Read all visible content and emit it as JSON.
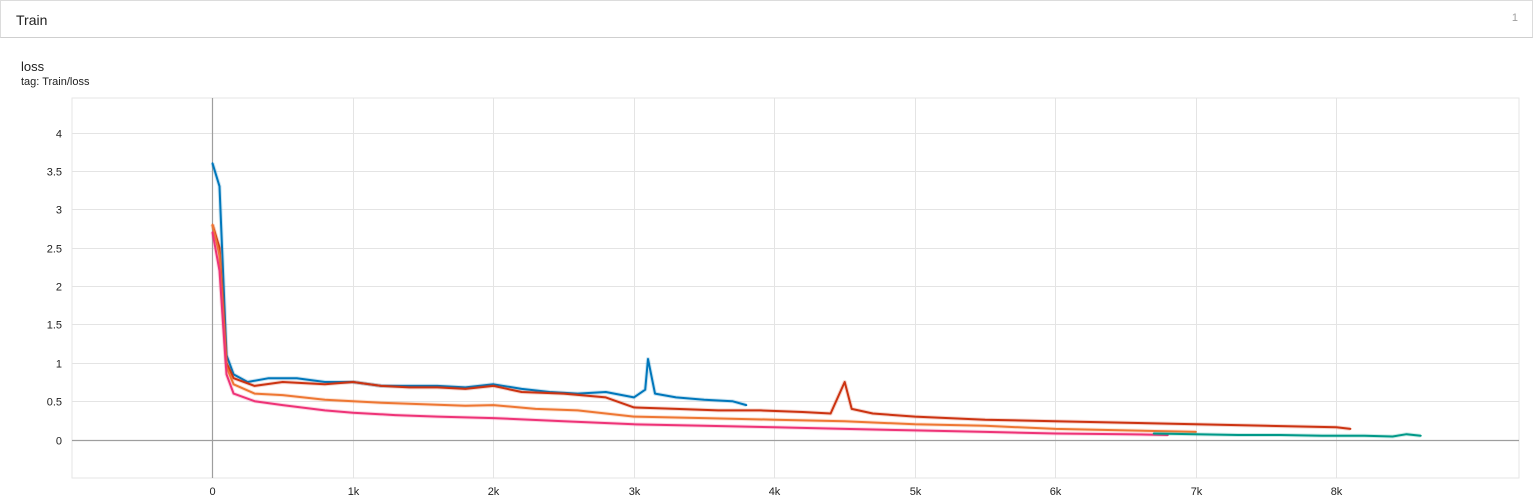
{
  "group": {
    "title": "Train",
    "count": "1"
  },
  "card": {
    "title": "loss",
    "subtitle": "tag: Train/loss"
  },
  "chart_data": {
    "type": "line",
    "xlabel": "",
    "ylabel": "",
    "xlim": [
      -1000,
      9300
    ],
    "ylim": [
      -0.5,
      4.45
    ],
    "grid": true,
    "x_ticks": [
      0,
      1000,
      2000,
      3000,
      4000,
      5000,
      6000,
      7000,
      8000
    ],
    "x_tick_labels": [
      "0",
      "1k",
      "2k",
      "3k",
      "4k",
      "5k",
      "6k",
      "7k",
      "8k"
    ],
    "y_ticks": [
      0,
      0.5,
      1,
      1.5,
      2,
      2.5,
      3,
      3.5,
      4
    ],
    "y_tick_labels": [
      "0",
      "0.5",
      "1",
      "1.5",
      "2",
      "2.5",
      "3",
      "3.5",
      "4"
    ],
    "series": [
      {
        "color": "#0077bb",
        "x": [
          0,
          50,
          100,
          150,
          250,
          400,
          600,
          800,
          1000,
          1200,
          1400,
          1600,
          1800,
          2000,
          2200,
          2400,
          2600,
          2800,
          3000,
          3080,
          3100,
          3150,
          3300,
          3500,
          3700,
          3800
        ],
        "y": [
          3.6,
          3.3,
          1.1,
          0.85,
          0.75,
          0.8,
          0.8,
          0.75,
          0.75,
          0.7,
          0.7,
          0.7,
          0.68,
          0.72,
          0.66,
          0.62,
          0.6,
          0.62,
          0.55,
          0.65,
          1.05,
          0.6,
          0.55,
          0.52,
          0.5,
          0.45
        ]
      },
      {
        "color": "#cc3311",
        "x": [
          0,
          50,
          100,
          150,
          300,
          500,
          800,
          1000,
          1200,
          1400,
          1600,
          1800,
          2000,
          2200,
          2500,
          2800,
          3000,
          3300,
          3600,
          3900,
          4200,
          4400,
          4500,
          4550,
          4700,
          5000,
          5500,
          6000,
          6500,
          7000,
          7500,
          8000,
          8100
        ],
        "y": [
          2.8,
          2.5,
          1.0,
          0.8,
          0.7,
          0.75,
          0.72,
          0.75,
          0.7,
          0.68,
          0.68,
          0.66,
          0.7,
          0.62,
          0.6,
          0.55,
          0.42,
          0.4,
          0.38,
          0.38,
          0.36,
          0.34,
          0.75,
          0.4,
          0.34,
          0.3,
          0.26,
          0.24,
          0.22,
          0.2,
          0.18,
          0.16,
          0.14
        ]
      },
      {
        "color": "#ee7733",
        "x": [
          0,
          50,
          100,
          150,
          300,
          500,
          800,
          1000,
          1200,
          1500,
          1800,
          2000,
          2300,
          2600,
          3000,
          3500,
          4000,
          4500,
          5000,
          5500,
          6000,
          6500,
          7000
        ],
        "y": [
          2.8,
          2.4,
          0.95,
          0.72,
          0.6,
          0.58,
          0.52,
          0.5,
          0.48,
          0.46,
          0.44,
          0.45,
          0.4,
          0.38,
          0.3,
          0.28,
          0.26,
          0.24,
          0.2,
          0.18,
          0.14,
          0.12,
          0.1
        ]
      },
      {
        "color": "#ee3377",
        "x": [
          0,
          50,
          100,
          150,
          300,
          500,
          800,
          1000,
          1300,
          1600,
          2000,
          2500,
          3000,
          3500,
          4000,
          4500,
          5000,
          5500,
          6000,
          6500,
          6800
        ],
        "y": [
          2.7,
          2.2,
          0.85,
          0.6,
          0.5,
          0.45,
          0.38,
          0.35,
          0.32,
          0.3,
          0.28,
          0.24,
          0.2,
          0.18,
          0.16,
          0.14,
          0.12,
          0.1,
          0.08,
          0.07,
          0.06
        ]
      },
      {
        "color": "#009988",
        "x": [
          6700,
          7000,
          7300,
          7600,
          7900,
          8200,
          8400,
          8500,
          8600
        ],
        "y": [
          0.08,
          0.07,
          0.06,
          0.06,
          0.05,
          0.05,
          0.04,
          0.07,
          0.05
        ]
      }
    ]
  }
}
